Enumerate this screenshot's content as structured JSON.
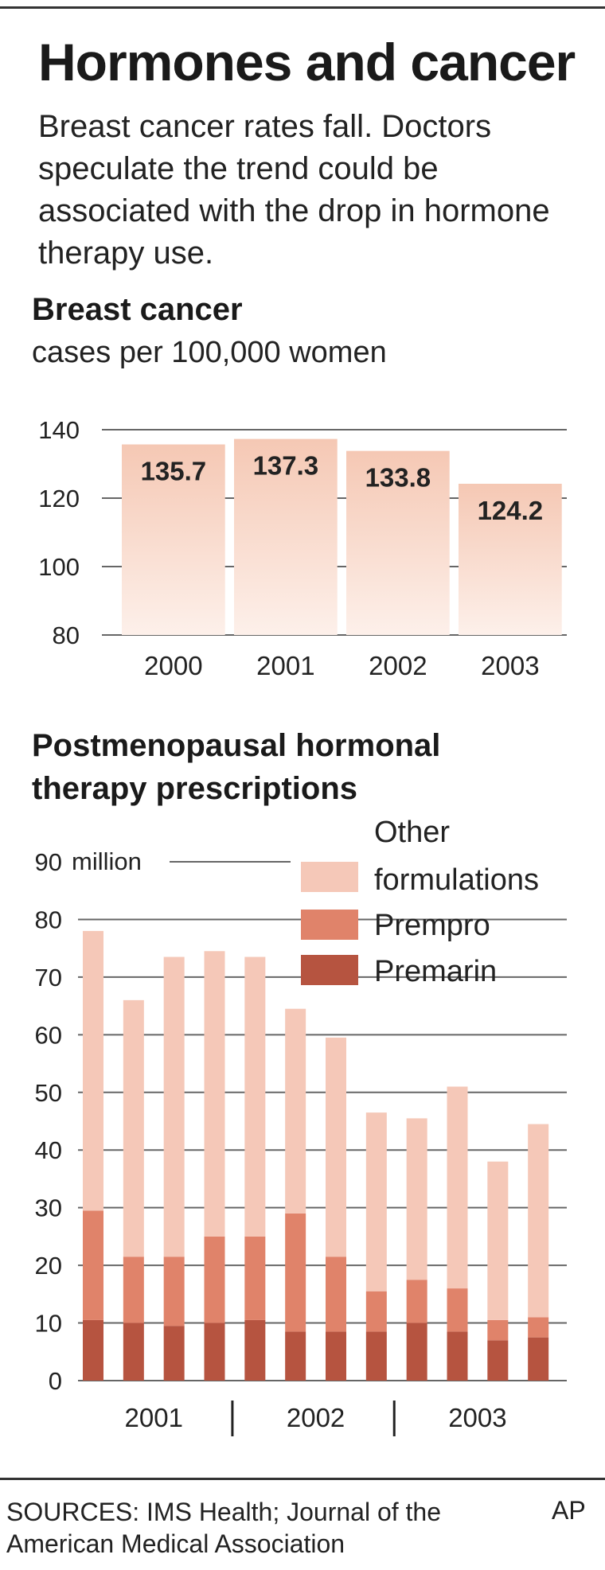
{
  "title": "Hormones and cancer",
  "subtitle": "Breast cancer rates fall. Doctors speculate the trend could be associated with the drop in hormone therapy use.",
  "footer": {
    "sources": "SOURCES: IMS Health; Journal of the American Medical Association",
    "credit": "AP"
  },
  "chart_data": [
    {
      "type": "bar",
      "title": "Breast cancer",
      "ylabel": "cases per 100,000 women",
      "categories": [
        "2000",
        "2001",
        "2002",
        "2003"
      ],
      "values": [
        135.7,
        137.3,
        133.8,
        124.2
      ],
      "value_labels": [
        "135.7",
        "137.3",
        "133.8",
        "124.2"
      ],
      "ylim": [
        80,
        140
      ],
      "yticks": [
        80,
        100,
        120,
        140
      ],
      "grid": true,
      "colors": {
        "bar": "#f5c8b4",
        "bar_fade": "#fdf0ea"
      }
    },
    {
      "type": "bar",
      "stacked": true,
      "title": "Postmenopausal hormonal therapy prescriptions",
      "y_unit": "million",
      "year_labels": [
        "2001",
        "2002",
        "2003"
      ],
      "bars_per_year": 4,
      "ylim": [
        0,
        90
      ],
      "yticks": [
        0,
        10,
        20,
        30,
        40,
        50,
        60,
        70,
        80,
        90
      ],
      "grid": true,
      "legend_position": "top-right",
      "series": [
        {
          "name": "Premarin",
          "color": "#b65440",
          "values": [
            10.5,
            10,
            9.5,
            10,
            10.5,
            8.5,
            8.5,
            8.5,
            10,
            8.5,
            7,
            7.5
          ]
        },
        {
          "name": "Prempro",
          "color": "#e0836a",
          "values": [
            19,
            11.5,
            12,
            15,
            14.5,
            20.5,
            13,
            7,
            7.5,
            7.5,
            3.5,
            3.5
          ]
        },
        {
          "name": "Other formulations",
          "color": "#f5c8b8",
          "values": [
            48.5,
            44.5,
            52,
            49.5,
            48.5,
            35.5,
            38,
            31,
            28,
            35,
            27.5,
            33.5
          ]
        }
      ]
    }
  ]
}
